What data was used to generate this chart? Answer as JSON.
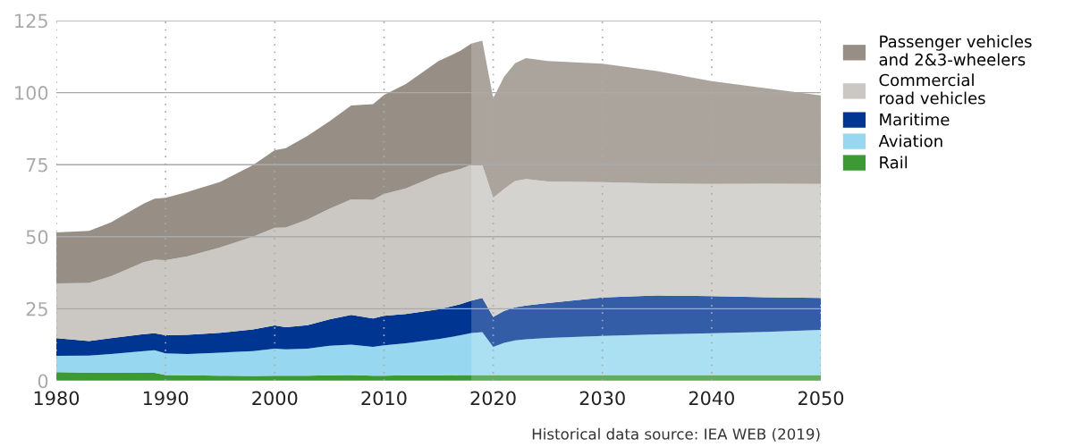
{
  "chart_data": {
    "type": "area",
    "stacked": true,
    "x": [
      1980,
      1983,
      1985,
      1988,
      1989,
      1990,
      1992,
      1995,
      1998,
      2000,
      2001,
      2003,
      2005,
      2007,
      2009,
      2010,
      2012,
      2015,
      2017,
      2018,
      2019,
      2020,
      2021,
      2022,
      2023,
      2025,
      2030,
      2035,
      2040,
      2045,
      2050
    ],
    "series": [
      {
        "name": "Rail",
        "color": "#3c9a35",
        "values": [
          3,
          2.9,
          2.9,
          2.8,
          2.8,
          2.0,
          1.9,
          1.8,
          1.7,
          1.8,
          1.8,
          1.8,
          1.9,
          2.0,
          1.8,
          1.8,
          1.9,
          1.9,
          2.0,
          2.0,
          2.0,
          2.0,
          2.0,
          2.0,
          2.0,
          2.0,
          2.0,
          2.0,
          2.0,
          2.0,
          2.0
        ]
      },
      {
        "name": "Aviation",
        "color": "#97d7ef",
        "values": [
          5.7,
          5.9,
          6.4,
          7.5,
          7.8,
          7.5,
          7.4,
          8.0,
          8.6,
          9.4,
          9.1,
          9.4,
          10.3,
          10.6,
          10.0,
          10.5,
          11.1,
          12.6,
          13.8,
          14.6,
          14.9,
          9.8,
          11.2,
          12.0,
          12.4,
          12.9,
          13.6,
          14.1,
          14.5,
          15.0,
          15.7
        ]
      },
      {
        "name": "Maritime",
        "color": "#003591",
        "values": [
          6.1,
          5.0,
          5.5,
          5.9,
          5.9,
          6.3,
          6.7,
          6.9,
          7.5,
          8.0,
          7.7,
          8.1,
          9.1,
          10.3,
          9.8,
          10.3,
          10.2,
          10.3,
          10.8,
          11.2,
          11.9,
          10.4,
          11.1,
          11.5,
          11.7,
          12.1,
          13.3,
          13.5,
          12.9,
          12.0,
          11.1
        ]
      },
      {
        "name": "Commercial\nroad vehicles",
        "color": "#cbc8c3",
        "values": [
          19.0,
          20.2,
          21.5,
          25.0,
          25.5,
          26.1,
          27.2,
          29.6,
          32.2,
          33.9,
          34.6,
          36.7,
          38.4,
          40.1,
          41.2,
          42.2,
          43.6,
          46.7,
          46.9,
          47.2,
          46.2,
          41.3,
          42.3,
          43.8,
          43.9,
          42.2,
          40.0,
          38.9,
          38.9,
          39.4,
          39.5
        ]
      },
      {
        "name": "Passenger vehicles\nand 2&3-wheelers",
        "color": "#978e85",
        "values": [
          17.7,
          18.0,
          18.7,
          20.3,
          21.2,
          21.6,
          22.3,
          22.7,
          24.8,
          26.9,
          27.5,
          29.0,
          30.3,
          32.5,
          33.2,
          34.4,
          36.2,
          39.5,
          41.0,
          42.0,
          43.0,
          34.5,
          38.9,
          40.9,
          42.0,
          41.8,
          41.1,
          39.0,
          35.7,
          33.1,
          30.7
        ]
      }
    ],
    "xlim": [
      1980,
      2050
    ],
    "xticks": [
      1980,
      1990,
      2000,
      2010,
      2020,
      2030,
      2040,
      2050
    ],
    "ylim": [
      0,
      125
    ],
    "yticks": [
      0,
      25,
      50,
      75,
      100,
      125
    ],
    "grid": true,
    "legend": "right",
    "bands": [
      {
        "axis": "x",
        "from": 2018,
        "to": 2050,
        "color": "#ffffff"
      }
    ],
    "annotations": [
      "Historical data source: IEA WEB (2019)"
    ]
  }
}
